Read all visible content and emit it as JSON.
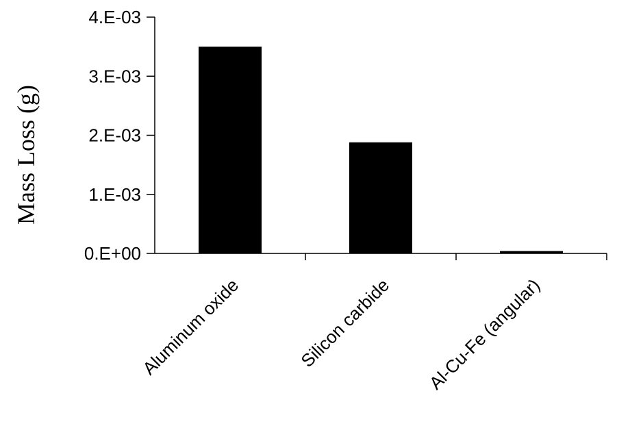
{
  "chart_data": {
    "type": "bar",
    "title": "",
    "xlabel": "",
    "ylabel": "Mass Loss (g)",
    "categories": [
      "Aluminum oxide",
      "Silicon carbide",
      "Al-Cu-Fe (angular)"
    ],
    "values": [
      0.0035,
      0.00188,
      4e-05
    ],
    "ylim": [
      0,
      0.004
    ],
    "yticks": [
      0,
      0.001,
      0.002,
      0.003,
      0.004
    ],
    "ytick_labels": [
      "0.E+00",
      "1.E-03",
      "2.E-03",
      "3.E-03",
      "4.E-03"
    ],
    "bar_color": "#000000",
    "grid": false,
    "legend": "none"
  }
}
